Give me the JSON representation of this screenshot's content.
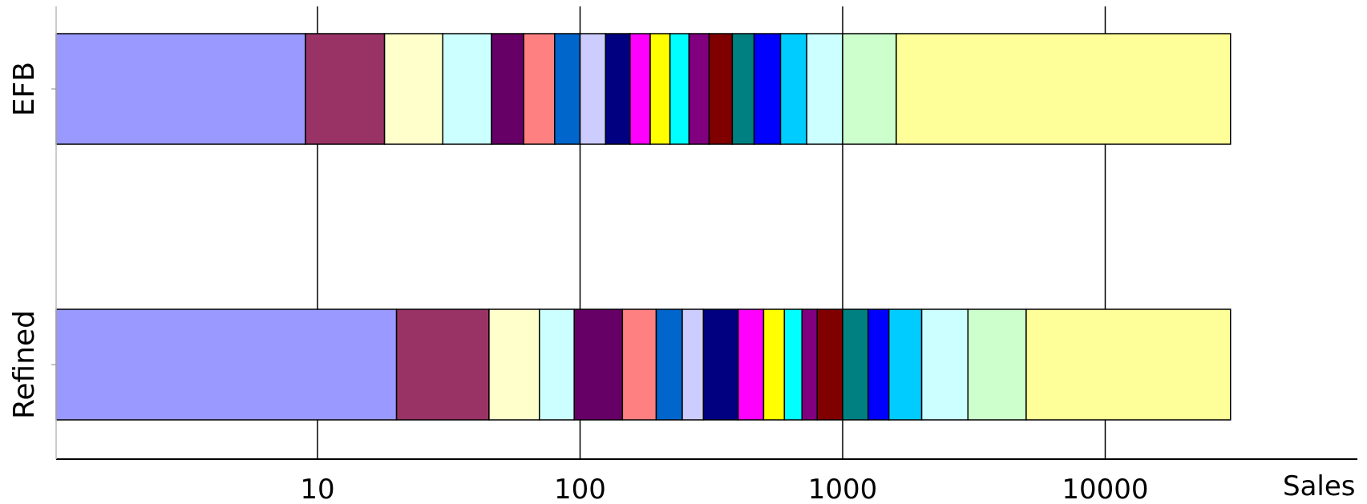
{
  "chart_data": {
    "type": "bar",
    "orientation": "horizontal",
    "stacked": true,
    "x_scale": "log",
    "xlim": [
      1,
      60000
    ],
    "xlabel": "Sales",
    "x_ticks": [
      10,
      100,
      1000,
      10000
    ],
    "x_tick_labels": [
      "10",
      "100",
      "1000",
      "10000"
    ],
    "grid": "vertical-major",
    "legend": "none",
    "categories": [
      "EFB",
      "Refined"
    ],
    "segment_colors": [
      "#9999ff",
      "#993366",
      "#ffffcc",
      "#ccffff",
      "#660066",
      "#ff8080",
      "#0066cc",
      "#ccccff",
      "#000080",
      "#ff00ff",
      "#ffff00",
      "#00ffff",
      "#800080",
      "#800000",
      "#008080",
      "#0000ff",
      "#00ccff",
      "#ccffff",
      "#ccffcc",
      "#ffff99"
    ],
    "cumulative_values": [
      [
        9,
        18,
        30,
        46,
        61,
        80,
        100,
        125,
        155,
        185,
        220,
        260,
        310,
        380,
        460,
        580,
        730,
        1000,
        1600,
        30000
      ],
      [
        20,
        45,
        70,
        95,
        145,
        195,
        245,
        295,
        400,
        500,
        600,
        700,
        800,
        1000,
        1250,
        1500,
        2000,
        3000,
        5000,
        30000
      ]
    ]
  }
}
